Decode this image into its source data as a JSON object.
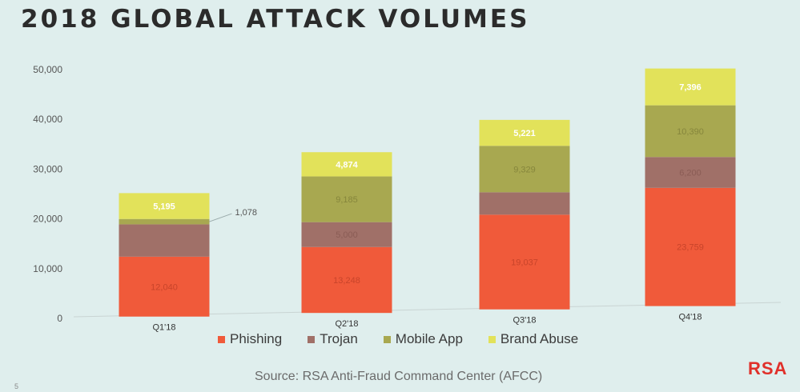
{
  "title": "2018 GLOBAL ATTACK VOLUMES",
  "source": "Source: RSA Anti-Fraud Command Center (AFCC)",
  "logo_text": "RSA",
  "page_number": "5",
  "chart_data": {
    "type": "bar",
    "stacked": true,
    "categories": [
      "Q1'18",
      "Q2'18",
      "Q3'18",
      "Q4'18"
    ],
    "ylim": [
      0,
      50000
    ],
    "yticks": [
      0,
      10000,
      20000,
      30000,
      40000,
      50000
    ],
    "ytick_labels": [
      "0",
      "10,000",
      "20,000",
      "30,000",
      "40,000",
      "50,000"
    ],
    "grid": false,
    "legend_position": "bottom",
    "series": [
      {
        "name": "Phishing",
        "color": "#f05a3a",
        "label_color": "#c8442a",
        "values": [
          12040,
          13248,
          19037,
          23759
        ],
        "labels": [
          "12,040",
          "13,248",
          "19,037",
          "23,759"
        ]
      },
      {
        "name": "Trojan",
        "color": "#a07068",
        "label_color": "#8a5c55",
        "values": [
          6500,
          5000,
          4500,
          6200
        ],
        "labels": [
          "",
          "5,000",
          "",
          "6,200"
        ]
      },
      {
        "name": "Mobile App",
        "color": "#a8a850",
        "label_color": "#86863c",
        "values": [
          1078,
          9185,
          9329,
          10390
        ],
        "labels": [
          "",
          "9,185",
          "9,329",
          "10,390"
        ]
      },
      {
        "name": "Brand Abuse",
        "color": "#e2e25a",
        "label_color": "#ffffff",
        "values": [
          5195,
          4874,
          5221,
          7396
        ],
        "labels": [
          "5,195",
          "4,874",
          "5,221",
          "7,396"
        ]
      }
    ],
    "annotations": [
      {
        "text": "1,078",
        "category": "Q1'18",
        "series": "Mobile App"
      }
    ]
  }
}
